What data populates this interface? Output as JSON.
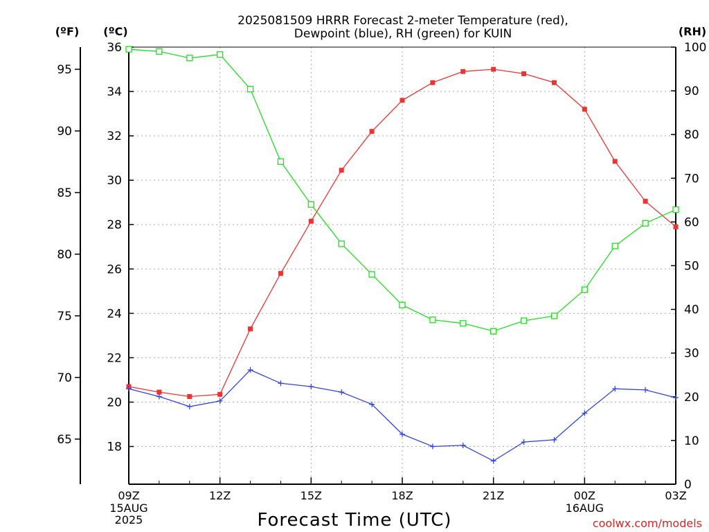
{
  "title_line1": "2025081509 HRRR Forecast 2-meter Temperature (red),",
  "title_line2": "Dewpoint (blue), RH (green) for KUIN",
  "unit_f": "(ºF)",
  "unit_c": "(ºC)",
  "unit_rh": "(RH)",
  "xlabel": "Forecast Time (UTC)",
  "credit": "coolwx.com/models",
  "colors": {
    "temperature": "#ee3333",
    "dewpoint": "#3344dd",
    "rh": "#22dd22",
    "grid": "#aaaaaa"
  },
  "chart_data": {
    "type": "line",
    "x": [
      "09Z",
      "10Z",
      "11Z",
      "12Z",
      "13Z",
      "14Z",
      "15Z",
      "16Z",
      "17Z",
      "18Z",
      "19Z",
      "20Z",
      "21Z",
      "22Z",
      "23Z",
      "00Z",
      "01Z",
      "02Z",
      "03Z"
    ],
    "x_ticks": [
      {
        "label": "09Z",
        "sub": [
          "15AUG",
          "2025"
        ]
      },
      {
        "label": "12Z",
        "sub": []
      },
      {
        "label": "15Z",
        "sub": []
      },
      {
        "label": "18Z",
        "sub": []
      },
      {
        "label": "21Z",
        "sub": []
      },
      {
        "label": "00Z",
        "sub": [
          "16AUG"
        ]
      },
      {
        "label": "03Z",
        "sub": []
      }
    ],
    "celsius_axis": {
      "range": [
        16.3,
        36
      ],
      "ticks": [
        18,
        20,
        22,
        24,
        26,
        28,
        30,
        32,
        34,
        36
      ]
    },
    "fahrenheit_axis": {
      "ticks": [
        65,
        70,
        75,
        80,
        85,
        90,
        95
      ]
    },
    "rh_axis": {
      "range": [
        0,
        100
      ],
      "ticks": [
        0,
        10,
        20,
        30,
        40,
        50,
        60,
        70,
        80,
        90,
        100
      ]
    },
    "grid": true,
    "series": [
      {
        "key": "temperature",
        "axis": "celsius",
        "marker": "filled-square",
        "values": [
          20.7,
          20.45,
          20.25,
          20.35,
          23.3,
          25.8,
          28.15,
          30.45,
          32.2,
          33.6,
          34.4,
          34.9,
          35.0,
          34.8,
          34.4,
          33.2,
          30.85,
          29.05,
          27.9
        ]
      },
      {
        "key": "dewpoint",
        "axis": "celsius",
        "marker": "plus",
        "values": [
          20.6,
          20.25,
          19.8,
          20.05,
          21.45,
          20.85,
          20.7,
          20.45,
          19.9,
          18.55,
          18.0,
          18.05,
          17.35,
          18.2,
          18.3,
          19.5,
          20.6,
          20.55,
          20.2
        ]
      },
      {
        "key": "rh",
        "axis": "rh",
        "marker": "open-square",
        "values": [
          99.5,
          99.0,
          97.5,
          98.3,
          90.4,
          73.8,
          64.0,
          55.0,
          48.0,
          41.0,
          37.6,
          36.8,
          35.0,
          37.4,
          38.5,
          44.5,
          54.5,
          59.7,
          62.8
        ]
      }
    ]
  }
}
